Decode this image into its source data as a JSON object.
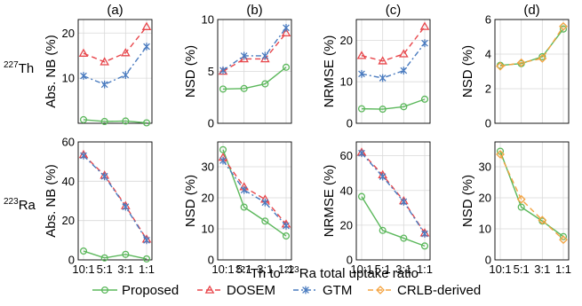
{
  "figure": {
    "xlabel_sup1": "227",
    "xlabel_mid": "Th to ",
    "xlabel_sup2": "223",
    "xlabel_end": "Ra total uptake ratio"
  },
  "row_labels": [
    {
      "sup": "227",
      "name": "Th"
    },
    {
      "sup": "223",
      "name": "Ra"
    }
  ],
  "legend": [
    {
      "label": "Proposed",
      "color": "#5cb85c",
      "marker": "circle",
      "dash": ""
    },
    {
      "label": "DOSEM",
      "color": "#e8474c",
      "marker": "triangle",
      "dash": "6,4"
    },
    {
      "label": "GTM",
      "color": "#4a7bbf",
      "marker": "x",
      "dash": "6,3,2,3"
    },
    {
      "label": "CRLB-derived",
      "color": "#f4a340",
      "marker": "diamond",
      "dash": "6,4"
    }
  ],
  "chart_data": [
    {
      "type": "line",
      "panel": "(a)",
      "title": "(a)",
      "row": 0,
      "col": 0,
      "ylabel": "Abs. NB (%)",
      "categories": [
        "10:1",
        "5:1",
        "3:1",
        "1:1"
      ],
      "ylim": [
        0,
        23
      ],
      "yticks": [
        10,
        20
      ],
      "series": [
        {
          "name": "Proposed",
          "values": [
            0.8,
            0.4,
            0.5,
            0.1
          ]
        },
        {
          "name": "DOSEM",
          "values": [
            15.5,
            13.6,
            15.6,
            21.4
          ]
        },
        {
          "name": "GTM",
          "values": [
            10.5,
            8.6,
            10.7,
            17.0
          ]
        }
      ]
    },
    {
      "type": "line",
      "panel": "(b)",
      "title": "(b)",
      "row": 0,
      "col": 1,
      "ylabel": "NSD (%)",
      "categories": [
        "10:1",
        "5:1",
        "3:1",
        "1:1"
      ],
      "ylim": [
        0,
        10
      ],
      "yticks": [
        0,
        5,
        10
      ],
      "series": [
        {
          "name": "Proposed",
          "values": [
            3.3,
            3.35,
            3.8,
            5.4
          ]
        },
        {
          "name": "DOSEM",
          "values": [
            5.0,
            6.2,
            6.2,
            8.7
          ]
        },
        {
          "name": "GTM",
          "values": [
            5.1,
            6.5,
            6.5,
            9.2
          ]
        }
      ]
    },
    {
      "type": "line",
      "panel": "(c)",
      "title": "(c)",
      "row": 0,
      "col": 2,
      "ylabel": "NRMSE (%)",
      "categories": [
        "10:1",
        "5:1",
        "3:1",
        "1:1"
      ],
      "ylim": [
        0,
        25
      ],
      "yticks": [
        0,
        10,
        20
      ],
      "series": [
        {
          "name": "Proposed",
          "values": [
            3.5,
            3.4,
            4.0,
            5.8
          ]
        },
        {
          "name": "DOSEM",
          "values": [
            16.3,
            15.0,
            16.7,
            23.3
          ]
        },
        {
          "name": "GTM",
          "values": [
            11.9,
            10.9,
            12.7,
            19.3
          ]
        }
      ]
    },
    {
      "type": "line",
      "panel": "(d)",
      "title": "(d)",
      "row": 0,
      "col": 3,
      "ylabel": "NSD (%)",
      "categories": [
        "10:1",
        "5:1",
        "3:1",
        "1:1"
      ],
      "ylim": [
        0,
        6
      ],
      "yticks": [
        0,
        2,
        4,
        6
      ],
      "series": [
        {
          "name": "Proposed",
          "values": [
            3.35,
            3.45,
            3.85,
            5.45
          ]
        },
        {
          "name": "CRLB-derived",
          "values": [
            3.3,
            3.5,
            3.75,
            5.6
          ]
        }
      ]
    },
    {
      "type": "line",
      "panel": "(a)",
      "title": "",
      "row": 1,
      "col": 0,
      "ylabel": "Abs. NB (%)",
      "categories": [
        "10:1",
        "5:1",
        "3:1",
        "1:1"
      ],
      "ylim": [
        0,
        60
      ],
      "yticks": [
        0,
        20,
        40,
        60
      ],
      "series": [
        {
          "name": "Proposed",
          "values": [
            4.5,
            1.0,
            2.8,
            0.5
          ]
        },
        {
          "name": "DOSEM",
          "values": [
            53.5,
            43.0,
            27.5,
            10.5
          ]
        },
        {
          "name": "GTM",
          "values": [
            53.0,
            42.5,
            27.0,
            10.0
          ]
        }
      ]
    },
    {
      "type": "line",
      "panel": "(b)",
      "title": "",
      "row": 1,
      "col": 1,
      "ylabel": "NSD (%)",
      "categories": [
        "10:1",
        "5:1",
        "3:1",
        "1:1"
      ],
      "ylim": [
        0,
        38
      ],
      "yticks": [
        0,
        10,
        20,
        30
      ],
      "series": [
        {
          "name": "Proposed",
          "values": [
            35.5,
            17.0,
            12.5,
            7.7
          ]
        },
        {
          "name": "DOSEM",
          "values": [
            33.0,
            23.5,
            19.5,
            11.5
          ]
        },
        {
          "name": "GTM",
          "values": [
            32.0,
            22.5,
            18.5,
            11.0
          ]
        }
      ]
    },
    {
      "type": "line",
      "panel": "(c)",
      "title": "",
      "row": 1,
      "col": 2,
      "ylabel": "NRMSE (%)",
      "categories": [
        "10:1",
        "5:1",
        "3:1",
        "1:1"
      ],
      "ylim": [
        0,
        68
      ],
      "yticks": [
        0,
        20,
        40,
        60
      ],
      "series": [
        {
          "name": "Proposed",
          "values": [
            36.5,
            17.0,
            12.5,
            8.0
          ]
        },
        {
          "name": "DOSEM",
          "values": [
            62.0,
            49.0,
            34.0,
            15.5
          ]
        },
        {
          "name": "GTM",
          "values": [
            61.5,
            48.0,
            33.5,
            15.0
          ]
        }
      ]
    },
    {
      "type": "line",
      "panel": "(d)",
      "title": "",
      "row": 1,
      "col": 3,
      "ylabel": "NSD (%)",
      "categories": [
        "10:1",
        "5:1",
        "3:1",
        "1:1"
      ],
      "ylim": [
        0,
        38
      ],
      "yticks": [
        0,
        10,
        20,
        30
      ],
      "series": [
        {
          "name": "Proposed",
          "values": [
            35.0,
            17.0,
            12.5,
            7.5
          ]
        },
        {
          "name": "CRLB-derived",
          "values": [
            34.0,
            19.5,
            12.8,
            6.5
          ]
        }
      ]
    }
  ]
}
